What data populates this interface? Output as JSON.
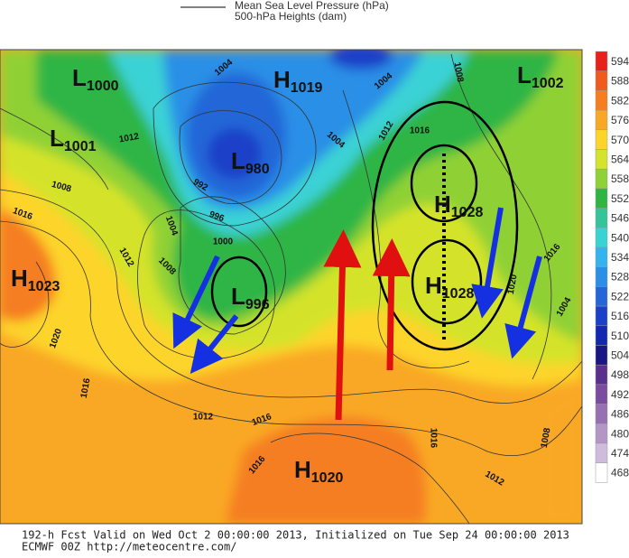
{
  "legend": [
    "Mean Sea Level Pressure (hPa)",
    "500-hPa Heights (dam)"
  ],
  "centers": [
    {
      "letter": "L",
      "value": 1000
    },
    {
      "letter": "L",
      "value": 1001
    },
    {
      "letter": "H",
      "value": 1019
    },
    {
      "letter": "L",
      "value": 1002
    },
    {
      "letter": "L",
      "value": 980
    },
    {
      "letter": "H",
      "value": 1023
    },
    {
      "letter": "L",
      "value": 996
    },
    {
      "letter": "H",
      "value": 1028
    },
    {
      "letter": "H",
      "value": 1028
    },
    {
      "letter": "H",
      "value": 1020
    }
  ],
  "isobar_labels": [
    1004,
    1004,
    1012,
    1008,
    1016,
    992,
    996,
    1004,
    1000,
    1012,
    1008,
    1004,
    1012,
    1016,
    1008,
    1020,
    1016,
    1012,
    1016,
    1016,
    1016,
    1012,
    1008,
    1016,
    1004,
    1020
  ],
  "colorbar": [
    {
      "value": 594,
      "color": "#e8201c"
    },
    {
      "value": 588,
      "color": "#f05a1e"
    },
    {
      "value": 582,
      "color": "#f57e20"
    },
    {
      "value": 576,
      "color": "#f9a825"
    },
    {
      "value": 570,
      "color": "#fdd42a"
    },
    {
      "value": 564,
      "color": "#d4e32b"
    },
    {
      "value": 558,
      "color": "#8fd136"
    },
    {
      "value": 552,
      "color": "#2eb544"
    },
    {
      "value": 546,
      "color": "#35c39a"
    },
    {
      "value": 540,
      "color": "#3ad2d5"
    },
    {
      "value": 534,
      "color": "#35b3ee"
    },
    {
      "value": 528,
      "color": "#2b8fe6"
    },
    {
      "value": 522,
      "color": "#2466d8"
    },
    {
      "value": 516,
      "color": "#1b3fc8"
    },
    {
      "value": 510,
      "color": "#1427b0"
    },
    {
      "value": 504,
      "color": "#1a1785"
    },
    {
      "value": 498,
      "color": "#5a2f8e"
    },
    {
      "value": 492,
      "color": "#7a4b9e"
    },
    {
      "value": 486,
      "color": "#9670b0"
    },
    {
      "value": 480,
      "color": "#b395c6"
    },
    {
      "value": 474,
      "color": "#cfbcdc"
    },
    {
      "value": 468,
      "color": "#ffffff"
    }
  ],
  "footer": [
    "192-h Fcst Valid on Wed Oct  2 00:00:00 2013, Initialized on Tue Sep 24 00:00:00 2013",
    "ECMWF 00Z http://meteocentre.com/"
  ]
}
